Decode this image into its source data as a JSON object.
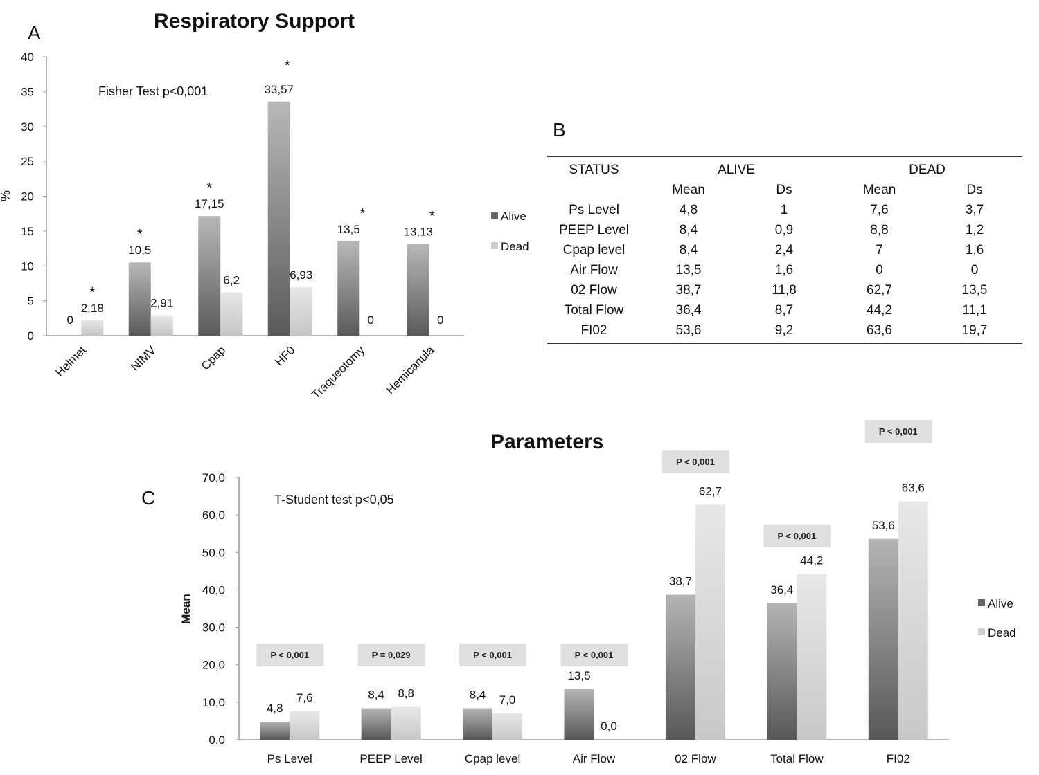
{
  "panel_a": {
    "letter": "A",
    "title": "Respiratory Support",
    "annotation": "Fisher Test p<0,001",
    "ylabel": "%",
    "yticks": [
      "0",
      "5",
      "10",
      "15",
      "20",
      "25",
      "30",
      "35",
      "40"
    ],
    "legend": [
      "Alive",
      "Dead"
    ]
  },
  "panel_b": {
    "letter": "B",
    "header": {
      "status": "STATUS",
      "alive": "ALIVE",
      "dead": "DEAD"
    },
    "subheader": [
      "Mean",
      "Ds",
      "Mean",
      "Ds"
    ],
    "rows": [
      [
        "Ps Level",
        "4,8",
        "1",
        "7,6",
        "3,7"
      ],
      [
        "PEEP Level",
        "8,4",
        "0,9",
        "8,8",
        "1,2"
      ],
      [
        "Cpap level",
        "8,4",
        "2,4",
        "7",
        "1,6"
      ],
      [
        "Air Flow",
        "13,5",
        "1,6",
        "0",
        "0"
      ],
      [
        "02 Flow",
        "38,7",
        "11,8",
        "62,7",
        "13,5"
      ],
      [
        "Total Flow",
        "36,4",
        "8,7",
        "44,2",
        "11,1"
      ],
      [
        "FI02",
        "53,6",
        "9,2",
        "63,6",
        "19,7"
      ]
    ]
  },
  "panel_c": {
    "letter": "C",
    "title": "Parameters",
    "annotation": "T-Student test p<0,05",
    "ylabel": "Mean",
    "yticks": [
      "0,0",
      "10,0",
      "20,0",
      "30,0",
      "40,0",
      "50,0",
      "60,0",
      "70,0"
    ],
    "legend": [
      "Alive",
      "Dead"
    ]
  },
  "colors": {
    "alive": "#7a7a7a",
    "dead": "#d4d4d4",
    "pbox": "#e0e0e0"
  },
  "chart_data": [
    {
      "type": "bar",
      "title": "Respiratory Support",
      "ylabel": "%",
      "ylim": [
        0,
        40
      ],
      "categories": [
        "Helmet",
        "NIMV",
        "Cpap",
        "HF0",
        "Traqueotomy",
        "Hemicanula"
      ],
      "series": [
        {
          "name": "Alive",
          "values": [
            0,
            10.5,
            17.15,
            33.57,
            13.5,
            13.13
          ],
          "labels": [
            "0",
            "10,5",
            "17,15",
            "33,57",
            "13,5",
            "13,13"
          ]
        },
        {
          "name": "Dead",
          "values": [
            2.18,
            2.91,
            6.2,
            6.93,
            0,
            0
          ],
          "labels": [
            "2,18",
            "2,91",
            "6,2",
            "6,93",
            "0",
            "0"
          ]
        }
      ],
      "significance_markers": [
        "*",
        "*",
        "*",
        "*",
        "*",
        "*"
      ],
      "annotation": "Fisher Test p<0,001",
      "legend_position": "right"
    },
    {
      "type": "bar",
      "title": "Parameters",
      "ylabel": "Mean",
      "ylim": [
        0,
        70
      ],
      "categories": [
        "Ps Level",
        "PEEP Level",
        "Cpap level",
        "Air Flow",
        "02 Flow",
        "Total Flow",
        "FI02"
      ],
      "series": [
        {
          "name": "Alive",
          "values": [
            4.8,
            8.4,
            8.4,
            13.5,
            38.7,
            36.4,
            53.6
          ],
          "labels": [
            "4,8",
            "8,4",
            "8,4",
            "13,5",
            "38,7",
            "36,4",
            "53,6"
          ]
        },
        {
          "name": "Dead",
          "values": [
            7.6,
            8.8,
            7.0,
            0.0,
            62.7,
            44.2,
            63.6
          ],
          "labels": [
            "7,6",
            "8,8",
            "7,0",
            "0,0",
            "62,7",
            "44,2",
            "63,6"
          ]
        }
      ],
      "p_values": [
        "P < 0,001",
        "P = 0,029",
        "P < 0,001",
        "P < 0,001",
        "P < 0,001",
        "P < 0,001",
        "P < 0,001"
      ],
      "annotation": "T-Student test p<0,05",
      "legend_position": "right"
    }
  ]
}
